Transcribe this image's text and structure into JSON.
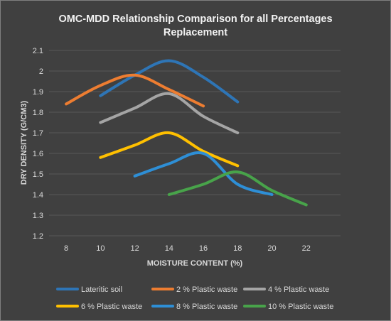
{
  "chart_data": {
    "type": "line",
    "title_lines": [
      "OMC-MDD Relationship Comparison for all Percentages",
      "Replacement"
    ],
    "xlabel": "MOISTURE CONTENT (%)",
    "ylabel": "DRY DENSITY (G/CM3)",
    "xlim": [
      7,
      24
    ],
    "ylim": [
      1.2,
      2.1
    ],
    "x_ticks": [
      8,
      10,
      12,
      14,
      16,
      18,
      20,
      22
    ],
    "y_ticks": [
      1.2,
      1.3,
      1.4,
      1.5,
      1.6,
      1.7,
      1.8,
      1.9,
      2,
      2.1
    ],
    "grid": true,
    "legend_position": "bottom",
    "series": [
      {
        "name": "Lateritic soil",
        "color": "#2e75b6",
        "x": [
          10,
          12,
          14,
          16,
          18
        ],
        "y": [
          1.88,
          1.98,
          2.05,
          1.97,
          1.85
        ]
      },
      {
        "name": "2 % Plastic waste",
        "color": "#ed7d31",
        "x": [
          8,
          10,
          12,
          14,
          16
        ],
        "y": [
          1.84,
          1.93,
          1.98,
          1.91,
          1.83
        ]
      },
      {
        "name": "4 % Plastic waste",
        "color": "#a5a5a5",
        "x": [
          10,
          12,
          14,
          16,
          18
        ],
        "y": [
          1.75,
          1.82,
          1.89,
          1.78,
          1.7
        ]
      },
      {
        "name": "6 % Plastic waste",
        "color": "#ffc000",
        "x": [
          10,
          12,
          14,
          16,
          18
        ],
        "y": [
          1.58,
          1.64,
          1.7,
          1.61,
          1.54
        ]
      },
      {
        "name": "8 % Plastic waste",
        "color": "#2e8fd6",
        "x": [
          12,
          14,
          16,
          18,
          20
        ],
        "y": [
          1.49,
          1.55,
          1.6,
          1.45,
          1.4
        ]
      },
      {
        "name": "10 % Plastic waste",
        "color": "#48a34a",
        "x": [
          14,
          16,
          18,
          20,
          22
        ],
        "y": [
          1.4,
          1.45,
          1.51,
          1.42,
          1.35
        ]
      }
    ]
  }
}
